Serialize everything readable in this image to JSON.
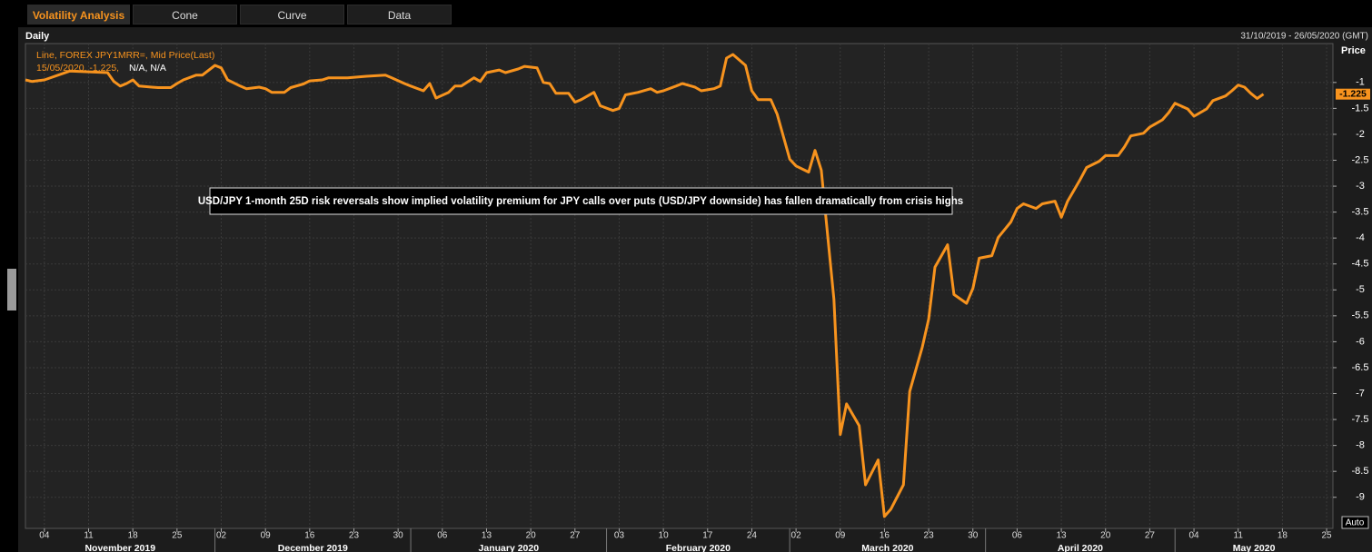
{
  "tabs": [
    "Volatility Analysis",
    "Cone",
    "Curve",
    "Data"
  ],
  "chart_data": {
    "type": "line",
    "title": "Daily",
    "date_range": "31/10/2019 - 26/05/2020 (GMT)",
    "y_axis_label": "Price",
    "legend": [
      "Line, FOREX JPY1MRR=, Mid Price(Last)",
      "15/05/2020, -1.225,",
      "N/A, N/A"
    ],
    "annotation": "USD/JPY 1-month 25D risk reversals show implied volatility premium for JPY calls over puts (USD/JPY downside) has fallen dramatically from crisis highs",
    "last_value": -1.225,
    "scale_mode": "Auto",
    "grid": true,
    "xlim": [
      "2019-11-01",
      "2020-05-26"
    ],
    "ylim": [
      -9.6,
      -0.25
    ],
    "yticks": [
      -1,
      -1.5,
      -2,
      -2.5,
      -3,
      -3.5,
      -4,
      -4.5,
      -5,
      -5.5,
      -6,
      -6.5,
      -7,
      -7.5,
      -8,
      -8.5,
      -9
    ],
    "xticks": [
      {
        "value": "2019-11-04",
        "label": "04"
      },
      {
        "value": "2019-11-11",
        "label": "11"
      },
      {
        "value": "2019-11-18",
        "label": "18"
      },
      {
        "value": "2019-11-25",
        "label": "25"
      },
      {
        "value": "2019-12-02",
        "label": "02"
      },
      {
        "value": "2019-12-09",
        "label": "09"
      },
      {
        "value": "2019-12-16",
        "label": "16"
      },
      {
        "value": "2019-12-23",
        "label": "23"
      },
      {
        "value": "2019-12-30",
        "label": "30"
      },
      {
        "value": "2020-01-06",
        "label": "06"
      },
      {
        "value": "2020-01-13",
        "label": "13"
      },
      {
        "value": "2020-01-20",
        "label": "20"
      },
      {
        "value": "2020-01-27",
        "label": "27"
      },
      {
        "value": "2020-02-03",
        "label": "03"
      },
      {
        "value": "2020-02-10",
        "label": "10"
      },
      {
        "value": "2020-02-17",
        "label": "17"
      },
      {
        "value": "2020-02-24",
        "label": "24"
      },
      {
        "value": "2020-03-02",
        "label": "02"
      },
      {
        "value": "2020-03-09",
        "label": "09"
      },
      {
        "value": "2020-03-16",
        "label": "16"
      },
      {
        "value": "2020-03-23",
        "label": "23"
      },
      {
        "value": "2020-03-30",
        "label": "30"
      },
      {
        "value": "2020-04-06",
        "label": "06"
      },
      {
        "value": "2020-04-13",
        "label": "13"
      },
      {
        "value": "2020-04-20",
        "label": "20"
      },
      {
        "value": "2020-04-27",
        "label": "27"
      },
      {
        "value": "2020-05-04",
        "label": "04"
      },
      {
        "value": "2020-05-11",
        "label": "11"
      },
      {
        "value": "2020-05-18",
        "label": "18"
      },
      {
        "value": "2020-05-25",
        "label": "25"
      }
    ],
    "x_months": [
      {
        "value": "2019-11-01",
        "label": "November 2019"
      },
      {
        "value": "2019-12-01",
        "label": "December 2019"
      },
      {
        "value": "2020-01-01",
        "label": "January 2020"
      },
      {
        "value": "2020-02-01",
        "label": "February 2020"
      },
      {
        "value": "2020-03-01",
        "label": "March 2020"
      },
      {
        "value": "2020-04-01",
        "label": "April 2020"
      },
      {
        "value": "2020-05-01",
        "label": "May 2020"
      }
    ],
    "x": [
      "2019-11-01",
      "2019-11-02",
      "2019-11-04",
      "2019-11-08",
      "2019-11-14",
      "2019-11-15",
      "2019-11-16",
      "2019-11-17",
      "2019-11-18",
      "2019-11-19",
      "2019-11-21",
      "2019-11-22",
      "2019-11-24",
      "2019-11-25",
      "2019-11-26",
      "2019-11-28",
      "2019-11-29",
      "2019-12-01",
      "2019-12-02",
      "2019-12-03",
      "2019-12-05",
      "2019-12-06",
      "2019-12-08",
      "2019-12-09",
      "2019-12-10",
      "2019-12-12",
      "2019-12-13",
      "2019-12-15",
      "2019-12-16",
      "2019-12-18",
      "2019-12-19",
      "2019-12-22",
      "2019-12-25",
      "2019-12-28",
      "2019-12-29",
      "2019-12-31",
      "2020-01-01",
      "2020-01-03",
      "2020-01-04",
      "2020-01-05",
      "2020-01-07",
      "2020-01-08",
      "2020-01-09",
      "2020-01-11",
      "2020-01-12",
      "2020-01-13",
      "2020-01-15",
      "2020-01-16",
      "2020-01-18",
      "2020-01-19",
      "2020-01-21",
      "2020-01-22",
      "2020-01-23",
      "2020-01-24",
      "2020-01-26",
      "2020-01-27",
      "2020-01-28",
      "2020-01-30",
      "2020-01-31",
      "2020-02-02",
      "2020-02-03",
      "2020-02-04",
      "2020-02-06",
      "2020-02-08",
      "2020-02-09",
      "2020-02-10",
      "2020-02-12",
      "2020-02-13",
      "2020-02-15",
      "2020-02-16",
      "2020-02-18",
      "2020-02-19",
      "2020-02-20",
      "2020-02-21",
      "2020-02-23",
      "2020-02-24",
      "2020-02-25",
      "2020-02-27",
      "2020-02-28",
      "2020-03-01",
      "2020-03-02",
      "2020-03-04",
      "2020-03-05",
      "2020-03-06",
      "2020-03-07",
      "2020-03-08",
      "2020-03-09",
      "2020-03-10",
      "2020-03-12",
      "2020-03-13",
      "2020-03-15",
      "2020-03-16",
      "2020-03-17",
      "2020-03-19",
      "2020-03-20",
      "2020-03-22",
      "2020-03-23",
      "2020-03-24",
      "2020-03-26",
      "2020-03-27",
      "2020-03-29",
      "2020-03-30",
      "2020-03-31",
      "2020-04-02",
      "2020-04-03",
      "2020-04-05",
      "2020-04-06",
      "2020-04-07",
      "2020-04-09",
      "2020-04-10",
      "2020-04-12",
      "2020-04-13",
      "2020-04-14",
      "2020-04-16",
      "2020-04-17",
      "2020-04-19",
      "2020-04-20",
      "2020-04-22",
      "2020-04-23",
      "2020-04-24",
      "2020-04-26",
      "2020-04-27",
      "2020-04-29",
      "2020-04-30",
      "2020-05-01",
      "2020-05-03",
      "2020-05-04",
      "2020-05-06",
      "2020-05-07",
      "2020-05-09",
      "2020-05-10",
      "2020-05-11",
      "2020-05-12",
      "2020-05-13",
      "2020-05-14",
      "2020-05-15"
    ],
    "series": [
      {
        "name": "FOREX JPY1MRR=",
        "color": "#f7931e",
        "values": [
          -0.95,
          -0.98,
          -0.95,
          -0.78,
          -0.81,
          -0.98,
          -1.07,
          -1.02,
          -0.95,
          -1.07,
          -1.09,
          -1.1,
          -1.1,
          -1.02,
          -0.95,
          -0.86,
          -0.86,
          -0.67,
          -0.72,
          -0.95,
          -1.07,
          -1.12,
          -1.09,
          -1.12,
          -1.19,
          -1.19,
          -1.1,
          -1.03,
          -0.97,
          -0.95,
          -0.91,
          -0.91,
          -0.88,
          -0.86,
          -0.91,
          -1.02,
          -1.07,
          -1.16,
          -1.02,
          -1.3,
          -1.19,
          -1.07,
          -1.07,
          -0.91,
          -0.98,
          -0.81,
          -0.76,
          -0.81,
          -0.74,
          -0.69,
          -0.72,
          -1.0,
          -1.02,
          -1.21,
          -1.21,
          -1.38,
          -1.33,
          -1.19,
          -1.45,
          -1.54,
          -1.5,
          -1.24,
          -1.19,
          -1.12,
          -1.19,
          -1.16,
          -1.07,
          -1.02,
          -1.09,
          -1.16,
          -1.12,
          -1.07,
          -0.53,
          -0.46,
          -0.67,
          -1.16,
          -1.33,
          -1.33,
          -1.61,
          -2.48,
          -2.61,
          -2.73,
          -2.31,
          -2.69,
          -3.95,
          -5.18,
          -7.79,
          -7.2,
          -7.62,
          -8.76,
          -8.28,
          -9.37,
          -9.23,
          -8.76,
          -6.96,
          -6.1,
          -5.56,
          -4.56,
          -4.13,
          -5.09,
          -5.26,
          -4.97,
          -4.39,
          -4.34,
          -3.99,
          -3.69,
          -3.43,
          -3.34,
          -3.43,
          -3.34,
          -3.29,
          -3.6,
          -3.29,
          -2.87,
          -2.64,
          -2.52,
          -2.41,
          -2.41,
          -2.24,
          -2.03,
          -1.98,
          -1.86,
          -1.72,
          -1.58,
          -1.4,
          -1.51,
          -1.65,
          -1.51,
          -1.35,
          -1.26,
          -1.16,
          -1.05,
          -1.09,
          -1.21,
          -1.31,
          -1.225
        ]
      }
    ]
  }
}
